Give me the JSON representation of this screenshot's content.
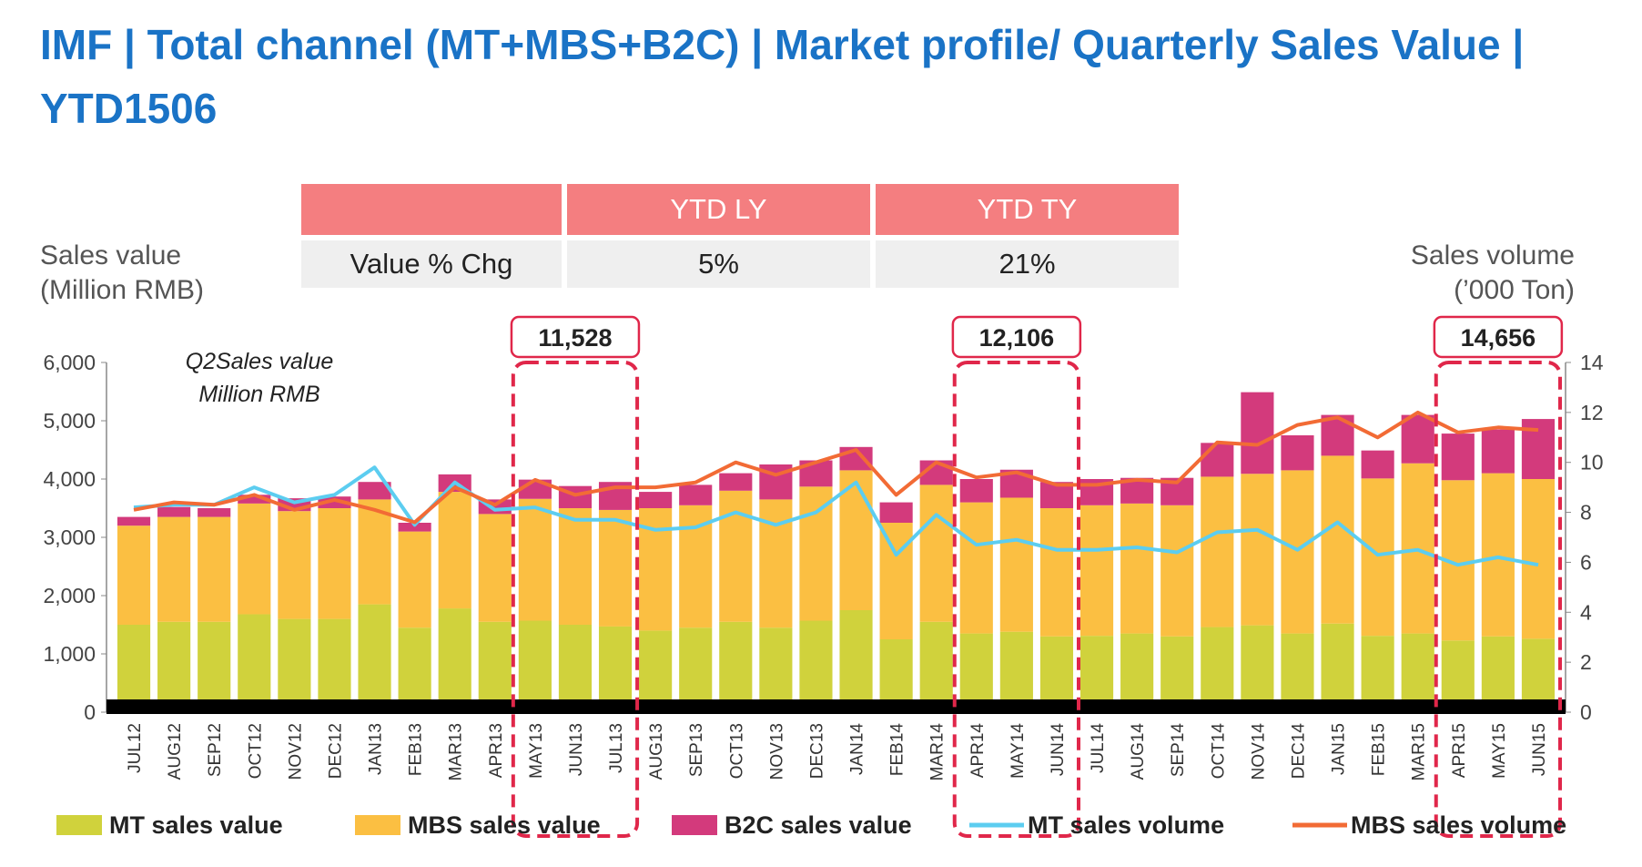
{
  "title": "IMF | Total channel (MT+MBS+B2C) | Market profile/ Quarterly Sales Value | YTD1506",
  "kpi_table": {
    "headers": [
      "",
      "YTD LY",
      "YTD TY"
    ],
    "row_label": "Value % Chg",
    "row_values": [
      "5%",
      "21%"
    ]
  },
  "left_axis_label": [
    "Sales value",
    "(Million RMB)"
  ],
  "right_axis_label": [
    "Sales volume",
    "(’000 Ton)"
  ],
  "note": [
    "Q2Sales value",
    "Million RMB"
  ],
  "callouts": [
    {
      "value": "11,528",
      "months": [
        "MAY13",
        "JUN13",
        "JUL13"
      ]
    },
    {
      "value": "12,106",
      "months": [
        "APR14",
        "MAY14",
        "JUN14"
      ]
    },
    {
      "value": "14,656",
      "months": [
        "APR15",
        "MAY15",
        "JUN15"
      ]
    }
  ],
  "colors": {
    "title": "#1a73c6",
    "mt": "#d0d23c",
    "mbs": "#fbbf42",
    "b2c": "#d33a7c",
    "mt_volume": "#5ccdf0",
    "mbs_volume": "#f26b35",
    "callout": "#e0274a",
    "header": "#f47e80"
  },
  "chart_data": {
    "type": "bar",
    "stacked": true,
    "categories": [
      "JUL12",
      "AUG12",
      "SEP12",
      "OCT12",
      "NOV12",
      "DEC12",
      "JAN13",
      "FEB13",
      "MAR13",
      "APR13",
      "MAY13",
      "JUN13",
      "JUL13",
      "AUG13",
      "SEP13",
      "OCT13",
      "NOV13",
      "DEC13",
      "JAN14",
      "FEB14",
      "MAR14",
      "APR14",
      "MAY14",
      "JUN14",
      "JUL14",
      "AUG14",
      "SEP14",
      "OCT14",
      "NOV14",
      "DEC14",
      "JAN15",
      "FEB15",
      "MAR15",
      "APR15",
      "MAY15",
      "JUN15"
    ],
    "series": [
      {
        "name": "MT sales value",
        "axis": "left",
        "values": [
          1500,
          1550,
          1550,
          1680,
          1600,
          1600,
          1850,
          1450,
          1780,
          1550,
          1570,
          1500,
          1470,
          1400,
          1450,
          1550,
          1450,
          1570,
          1750,
          1250,
          1550,
          1350,
          1380,
          1300,
          1310,
          1350,
          1300,
          1460,
          1490,
          1350,
          1520,
          1310,
          1350,
          1230,
          1300,
          1260
        ]
      },
      {
        "name": "MBS sales value",
        "axis": "left",
        "values": [
          1700,
          1800,
          1800,
          1900,
          1850,
          1900,
          1800,
          1650,
          2000,
          1850,
          2090,
          2000,
          2000,
          2100,
          2100,
          2250,
          2200,
          2300,
          2400,
          2000,
          2350,
          2250,
          2300,
          2200,
          2240,
          2230,
          2250,
          2580,
          2600,
          2800,
          2880,
          2700,
          2920,
          2750,
          2800,
          2740
        ]
      },
      {
        "name": "B2C sales value",
        "axis": "left",
        "values": [
          150,
          170,
          150,
          150,
          220,
          200,
          300,
          150,
          300,
          250,
          330,
          380,
          480,
          280,
          350,
          300,
          600,
          450,
          400,
          350,
          420,
          400,
          480,
          450,
          450,
          440,
          470,
          580,
          1400,
          600,
          700,
          480,
          830,
          800,
          750,
          1030
        ]
      },
      {
        "name": "MT sales volume",
        "type": "line",
        "axis": "right",
        "values": [
          8.2,
          8.3,
          8.3,
          9.0,
          8.4,
          8.7,
          9.8,
          7.5,
          9.2,
          8.1,
          8.2,
          7.7,
          7.7,
          7.3,
          7.4,
          8.0,
          7.5,
          8.0,
          9.2,
          6.3,
          7.9,
          6.7,
          6.9,
          6.5,
          6.5,
          6.6,
          6.4,
          7.2,
          7.3,
          6.5,
          7.6,
          6.3,
          6.5,
          5.9,
          6.2,
          5.9
        ]
      },
      {
        "name": "MBS sales volume",
        "type": "line",
        "axis": "right",
        "values": [
          8.1,
          8.4,
          8.3,
          8.7,
          8.1,
          8.5,
          8.1,
          7.6,
          9.0,
          8.3,
          9.3,
          8.7,
          9.0,
          9.0,
          9.2,
          10.0,
          9.5,
          10.0,
          10.5,
          8.7,
          10.0,
          9.4,
          9.6,
          9.1,
          9.1,
          9.3,
          9.2,
          10.8,
          10.7,
          11.5,
          11.8,
          11.0,
          12.0,
          11.2,
          11.4,
          11.3
        ]
      }
    ],
    "y_left": {
      "ticks": [
        "0",
        "1,000",
        "2,000",
        "3,000",
        "4,000",
        "5,000",
        "6,000"
      ],
      "ylim": [
        0,
        6000
      ]
    },
    "y_right": {
      "ticks": [
        "0",
        "2",
        "4",
        "6",
        "8",
        "10",
        "12",
        "14"
      ],
      "ylim": [
        0,
        14
      ]
    },
    "legend": "bottom",
    "grid": false
  }
}
